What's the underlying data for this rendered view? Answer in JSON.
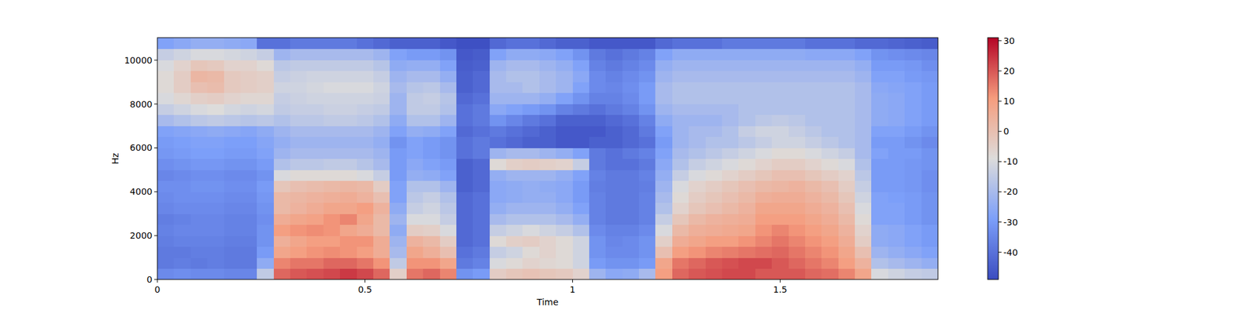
{
  "chart_data": {
    "type": "heatmap",
    "x_label": "Time",
    "y_label": "Hz",
    "xlim": [
      0,
      1.88
    ],
    "xticks": [
      0,
      0.5,
      1,
      1.5
    ],
    "ylim": [
      0,
      11025
    ],
    "yticks": [
      0,
      2000,
      4000,
      6000,
      8000,
      10000
    ],
    "x_edges": [
      0,
      0.04,
      0.08,
      0.12,
      0.16,
      0.2,
      0.24,
      0.28,
      0.32,
      0.36,
      0.4,
      0.44,
      0.48,
      0.52,
      0.56,
      0.6,
      0.64,
      0.68,
      0.72,
      0.76,
      0.8,
      0.84,
      0.88,
      0.92,
      0.96,
      1,
      1.04,
      1.08,
      1.12,
      1.16,
      1.2,
      1.24,
      1.28,
      1.32,
      1.36,
      1.4,
      1.44,
      1.48,
      1.52,
      1.56,
      1.6,
      1.64,
      1.68,
      1.72,
      1.76,
      1.8,
      1.84,
      1.88
    ],
    "y_edges": [
      0,
      501,
      1002,
      1503,
      2004,
      2505,
      3006,
      3507,
      4008,
      4509,
      5010,
      5511,
      6012,
      6513,
      7014,
      7515,
      8016,
      8517,
      9018,
      9519,
      10020,
      10521,
      11025
    ],
    "values": [
      [
        -34,
        -38,
        -38,
        -37,
        -36,
        -37,
        -35,
        -34,
        -33,
        -35,
        -33,
        -31,
        -30,
        -28,
        -20,
        -14,
        -10,
        -8,
        -8,
        -10,
        -14,
        -28
      ],
      [
        -33,
        -37,
        -38,
        -36,
        -35,
        -36,
        -34,
        -33,
        -33,
        -34,
        -32,
        -30,
        -29,
        -27,
        -18,
        -12,
        -7,
        -4,
        -4,
        -6,
        -12,
        -26
      ],
      [
        -34,
        -38,
        -37,
        -36,
        -35,
        -35,
        -34,
        -33,
        -32,
        -33,
        -31,
        -29,
        -28,
        -26,
        -16,
        -10,
        -5,
        0,
        3,
        -2,
        -10,
        -24
      ],
      [
        -34,
        -37,
        -37,
        -36,
        -35,
        -35,
        -34,
        -33,
        -32,
        -33,
        -31,
        -29,
        -28,
        -25,
        -15,
        -9,
        -4,
        1,
        2,
        -3,
        -10,
        -24
      ],
      [
        -35,
        -38,
        -38,
        -37,
        -36,
        -36,
        -35,
        -34,
        -33,
        -34,
        -32,
        -30,
        -29,
        -26,
        -16,
        -11,
        -6,
        -3,
        -3,
        -6,
        -11,
        -25
      ],
      [
        -35,
        -38,
        -38,
        -37,
        -36,
        -36,
        -35,
        -34,
        -33,
        -34,
        -32,
        -30,
        -29,
        -27,
        -17,
        -12,
        -7,
        -4,
        -4,
        -6,
        -12,
        -26
      ],
      [
        -15,
        -25,
        -30,
        -32,
        -32,
        -33,
        -32,
        -31,
        -30,
        -32,
        -30,
        -28,
        -27,
        -25,
        -16,
        -11,
        -7,
        -5,
        -5,
        -8,
        -14,
        -40
      ],
      [
        18,
        14,
        8,
        5,
        10,
        6,
        2,
        2,
        -2,
        -10,
        -18,
        -22,
        -24,
        -22,
        -18,
        -15,
        -14,
        -12,
        -14,
        -16,
        -22,
        -40
      ],
      [
        20,
        16,
        10,
        8,
        12,
        8,
        4,
        3,
        0,
        -8,
        -16,
        -20,
        -22,
        -20,
        -16,
        -14,
        -13,
        -12,
        -13,
        -15,
        -20,
        -38
      ],
      [
        21,
        16,
        12,
        10,
        13,
        9,
        6,
        4,
        1,
        -8,
        -16,
        -20,
        -22,
        -20,
        -16,
        -14,
        -12,
        -11,
        -12,
        -15,
        -20,
        -38
      ],
      [
        22,
        18,
        13,
        10,
        12,
        12,
        8,
        5,
        2,
        -8,
        -15,
        -20,
        -22,
        -20,
        -15,
        -13,
        -12,
        -10,
        -12,
        -15,
        -20,
        -38
      ],
      [
        24,
        18,
        12,
        12,
        8,
        14,
        8,
        6,
        3,
        -8,
        -15,
        -20,
        -22,
        -20,
        -15,
        -13,
        -12,
        -10,
        -12,
        -15,
        -20,
        -38
      ],
      [
        22,
        16,
        10,
        12,
        6,
        8,
        10,
        4,
        2,
        -10,
        -17,
        -20,
        -22,
        -20,
        -16,
        -14,
        -12,
        -10,
        -12,
        -15,
        -20,
        -40
      ],
      [
        18,
        12,
        6,
        6,
        2,
        2,
        4,
        0,
        -4,
        -14,
        -20,
        -22,
        -24,
        -22,
        -18,
        -15,
        -13,
        -12,
        -14,
        -17,
        -22,
        -42
      ],
      [
        -5,
        -15,
        -20,
        -22,
        -25,
        -22,
        -25,
        -28,
        -28,
        -30,
        -30,
        -30,
        -32,
        -28,
        -25,
        -22,
        -22,
        -20,
        -22,
        -25,
        -28,
        -44
      ],
      [
        16,
        12,
        8,
        4,
        -4,
        -10,
        -14,
        -16,
        -18,
        -24,
        -26,
        -28,
        -28,
        -24,
        -18,
        -15,
        -15,
        -17,
        -20,
        -24,
        -30,
        -44
      ],
      [
        18,
        12,
        5,
        2,
        -5,
        -10,
        -12,
        -14,
        -18,
        -25,
        -28,
        -30,
        -30,
        -25,
        -18,
        -15,
        -14,
        -16,
        -20,
        -24,
        -30,
        -44
      ],
      [
        14,
        8,
        0,
        -4,
        -10,
        -14,
        -16,
        -18,
        -22,
        -28,
        -30,
        -32,
        -32,
        -28,
        -22,
        -18,
        -17,
        -20,
        -24,
        -28,
        -32,
        -46
      ],
      [
        -32,
        -38,
        -40,
        -42,
        -42,
        -42,
        -42,
        -42,
        -44,
        -44,
        -44,
        -40,
        -40,
        -42,
        -40,
        -40,
        -42,
        -44,
        -44,
        -45,
        -46,
        -48
      ],
      [
        -30,
        -36,
        -38,
        -40,
        -40,
        -40,
        -40,
        -40,
        -42,
        -42,
        -42,
        -38,
        -38,
        -40,
        -38,
        -38,
        -40,
        -42,
        -42,
        -44,
        -45,
        -48
      ],
      [
        -4,
        -10,
        -14,
        -8,
        -14,
        -20,
        -24,
        -26,
        -26,
        -24,
        -8,
        -22,
        -40,
        -38,
        -32,
        -26,
        -22,
        -20,
        -20,
        -22,
        -28,
        -42
      ],
      [
        -2,
        -8,
        -12,
        -5,
        -12,
        -18,
        -22,
        -25,
        -25,
        -22,
        -5,
        -20,
        -42,
        -40,
        -35,
        -28,
        -22,
        -20,
        -18,
        -20,
        -25,
        -40
      ],
      [
        -1,
        -6,
        -8,
        -4,
        -10,
        -18,
        -22,
        -24,
        -24,
        -22,
        -4,
        -20,
        -44,
        -42,
        -38,
        -30,
        -22,
        -18,
        -18,
        -20,
        -25,
        -40
      ],
      [
        -2,
        -7,
        -6,
        -6,
        -12,
        -18,
        -22,
        -24,
        -25,
        -22,
        -5,
        -22,
        -44,
        -44,
        -40,
        -32,
        -24,
        -20,
        -20,
        -22,
        -26,
        -42
      ],
      [
        -3,
        -8,
        -8,
        -8,
        -14,
        -20,
        -24,
        -26,
        -26,
        -24,
        -6,
        -24,
        -46,
        -46,
        -44,
        -36,
        -28,
        -22,
        -22,
        -24,
        -28,
        -44
      ],
      [
        -6,
        -12,
        -12,
        -12,
        -18,
        -24,
        -28,
        -30,
        -30,
        -28,
        -14,
        -28,
        -46,
        -46,
        -44,
        -38,
        -32,
        -28,
        -26,
        -28,
        -32,
        -44
      ],
      [
        -22,
        -30,
        -32,
        -32,
        -34,
        -36,
        -36,
        -36,
        -37,
        -36,
        -38,
        -38,
        -44,
        -46,
        -44,
        -40,
        -36,
        -34,
        -34,
        -36,
        -38,
        -46
      ],
      [
        -26,
        -32,
        -34,
        -35,
        -36,
        -38,
        -38,
        -38,
        -38,
        -38,
        -40,
        -40,
        -44,
        -44,
        -42,
        -38,
        -36,
        -35,
        -36,
        -38,
        -40,
        -46
      ],
      [
        -25,
        -32,
        -34,
        -34,
        -36,
        -38,
        -38,
        -38,
        -38,
        -38,
        -40,
        -38,
        -42,
        -42,
        -40,
        -36,
        -34,
        -33,
        -34,
        -36,
        -38,
        -46
      ],
      [
        -20,
        -30,
        -32,
        -32,
        -34,
        -36,
        -36,
        -36,
        -37,
        -36,
        -38,
        -36,
        -40,
        -38,
        -36,
        -32,
        -30,
        -30,
        -32,
        -34,
        -36,
        -46
      ],
      [
        10,
        8,
        0,
        -5,
        -10,
        -14,
        -18,
        -20,
        -22,
        -24,
        -26,
        -28,
        -30,
        -28,
        -25,
        -22,
        -20,
        -20,
        -22,
        -24,
        -28,
        -42
      ],
      [
        18,
        16,
        10,
        6,
        2,
        -2,
        -6,
        -8,
        -10,
        -14,
        -18,
        -20,
        -22,
        -22,
        -22,
        -20,
        -18,
        -18,
        -20,
        -22,
        -25,
        -40
      ],
      [
        20,
        18,
        12,
        8,
        5,
        2,
        -2,
        -4,
        -6,
        -10,
        -14,
        -18,
        -20,
        -20,
        -22,
        -20,
        -18,
        -18,
        -20,
        -22,
        -25,
        -40
      ],
      [
        21,
        20,
        14,
        10,
        6,
        4,
        0,
        -2,
        -4,
        -8,
        -12,
        -16,
        -18,
        -20,
        -22,
        -20,
        -18,
        -18,
        -20,
        -22,
        -25,
        -40
      ],
      [
        22,
        21,
        15,
        10,
        7,
        5,
        2,
        0,
        -2,
        -6,
        -10,
        -14,
        -18,
        -18,
        -20,
        -20,
        -18,
        -18,
        -20,
        -22,
        -25,
        -38
      ],
      [
        22,
        22,
        16,
        12,
        8,
        6,
        4,
        2,
        0,
        -4,
        -8,
        -12,
        -16,
        -14,
        -18,
        -18,
        -18,
        -18,
        -20,
        -22,
        -25,
        -38
      ],
      [
        20,
        22,
        17,
        14,
        12,
        10,
        8,
        5,
        2,
        -2,
        -6,
        -10,
        -14,
        -12,
        -16,
        -18,
        -18,
        -18,
        -20,
        -22,
        -25,
        -38
      ],
      [
        20,
        20,
        18,
        16,
        14,
        10,
        8,
        6,
        3,
        0,
        -4,
        -8,
        -12,
        -12,
        -15,
        -18,
        -18,
        -18,
        -20,
        -22,
        -25,
        -38
      ],
      [
        20,
        18,
        16,
        14,
        12,
        10,
        8,
        6,
        4,
        0,
        -4,
        -8,
        -12,
        -14,
        -16,
        -18,
        -18,
        -18,
        -20,
        -22,
        -25,
        -38
      ],
      [
        18,
        16,
        14,
        12,
        10,
        8,
        6,
        4,
        2,
        -2,
        -6,
        -10,
        -14,
        -16,
        -18,
        -18,
        -18,
        -18,
        -20,
        -22,
        -26,
        -40
      ],
      [
        17,
        14,
        12,
        10,
        8,
        6,
        4,
        2,
        0,
        -4,
        -8,
        -12,
        -16,
        -18,
        -18,
        -18,
        -18,
        -18,
        -20,
        -22,
        -26,
        -40
      ],
      [
        14,
        10,
        8,
        6,
        4,
        2,
        0,
        -2,
        -4,
        -6,
        -10,
        -14,
        -18,
        -18,
        -18,
        -18,
        -18,
        -18,
        -20,
        -22,
        -26,
        -40
      ],
      [
        8,
        4,
        0,
        -4,
        -6,
        -8,
        -10,
        -12,
        -14,
        -16,
        -18,
        -20,
        -20,
        -20,
        -20,
        -20,
        -20,
        -20,
        -22,
        -24,
        -28,
        -42
      ],
      [
        -10,
        -18,
        -22,
        -25,
        -25,
        -28,
        -28,
        -28,
        -30,
        -30,
        -30,
        -28,
        -30,
        -28,
        -25,
        -25,
        -25,
        -26,
        -28,
        -30,
        -32,
        -42
      ],
      [
        -12,
        -20,
        -24,
        -26,
        -26,
        -28,
        -28,
        -29,
        -30,
        -30,
        -30,
        -30,
        -30,
        -28,
        -26,
        -26,
        -26,
        -27,
        -28,
        -30,
        -33,
        -43
      ],
      [
        -14,
        -22,
        -26,
        -28,
        -28,
        -30,
        -30,
        -30,
        -31,
        -31,
        -31,
        -30,
        -32,
        -30,
        -28,
        -28,
        -28,
        -28,
        -30,
        -31,
        -34,
        -44
      ],
      [
        -15,
        -24,
        -28,
        -30,
        -30,
        -32,
        -32,
        -32,
        -33,
        -33,
        -32,
        -32,
        -34,
        -32,
        -30,
        -30,
        -30,
        -30,
        -31,
        -33,
        -35,
        -45
      ]
    ],
    "colorbar": {
      "range": [
        -49,
        31
      ],
      "ticks": [
        -40,
        -30,
        -20,
        -10,
        0,
        10,
        20,
        30
      ]
    }
  }
}
